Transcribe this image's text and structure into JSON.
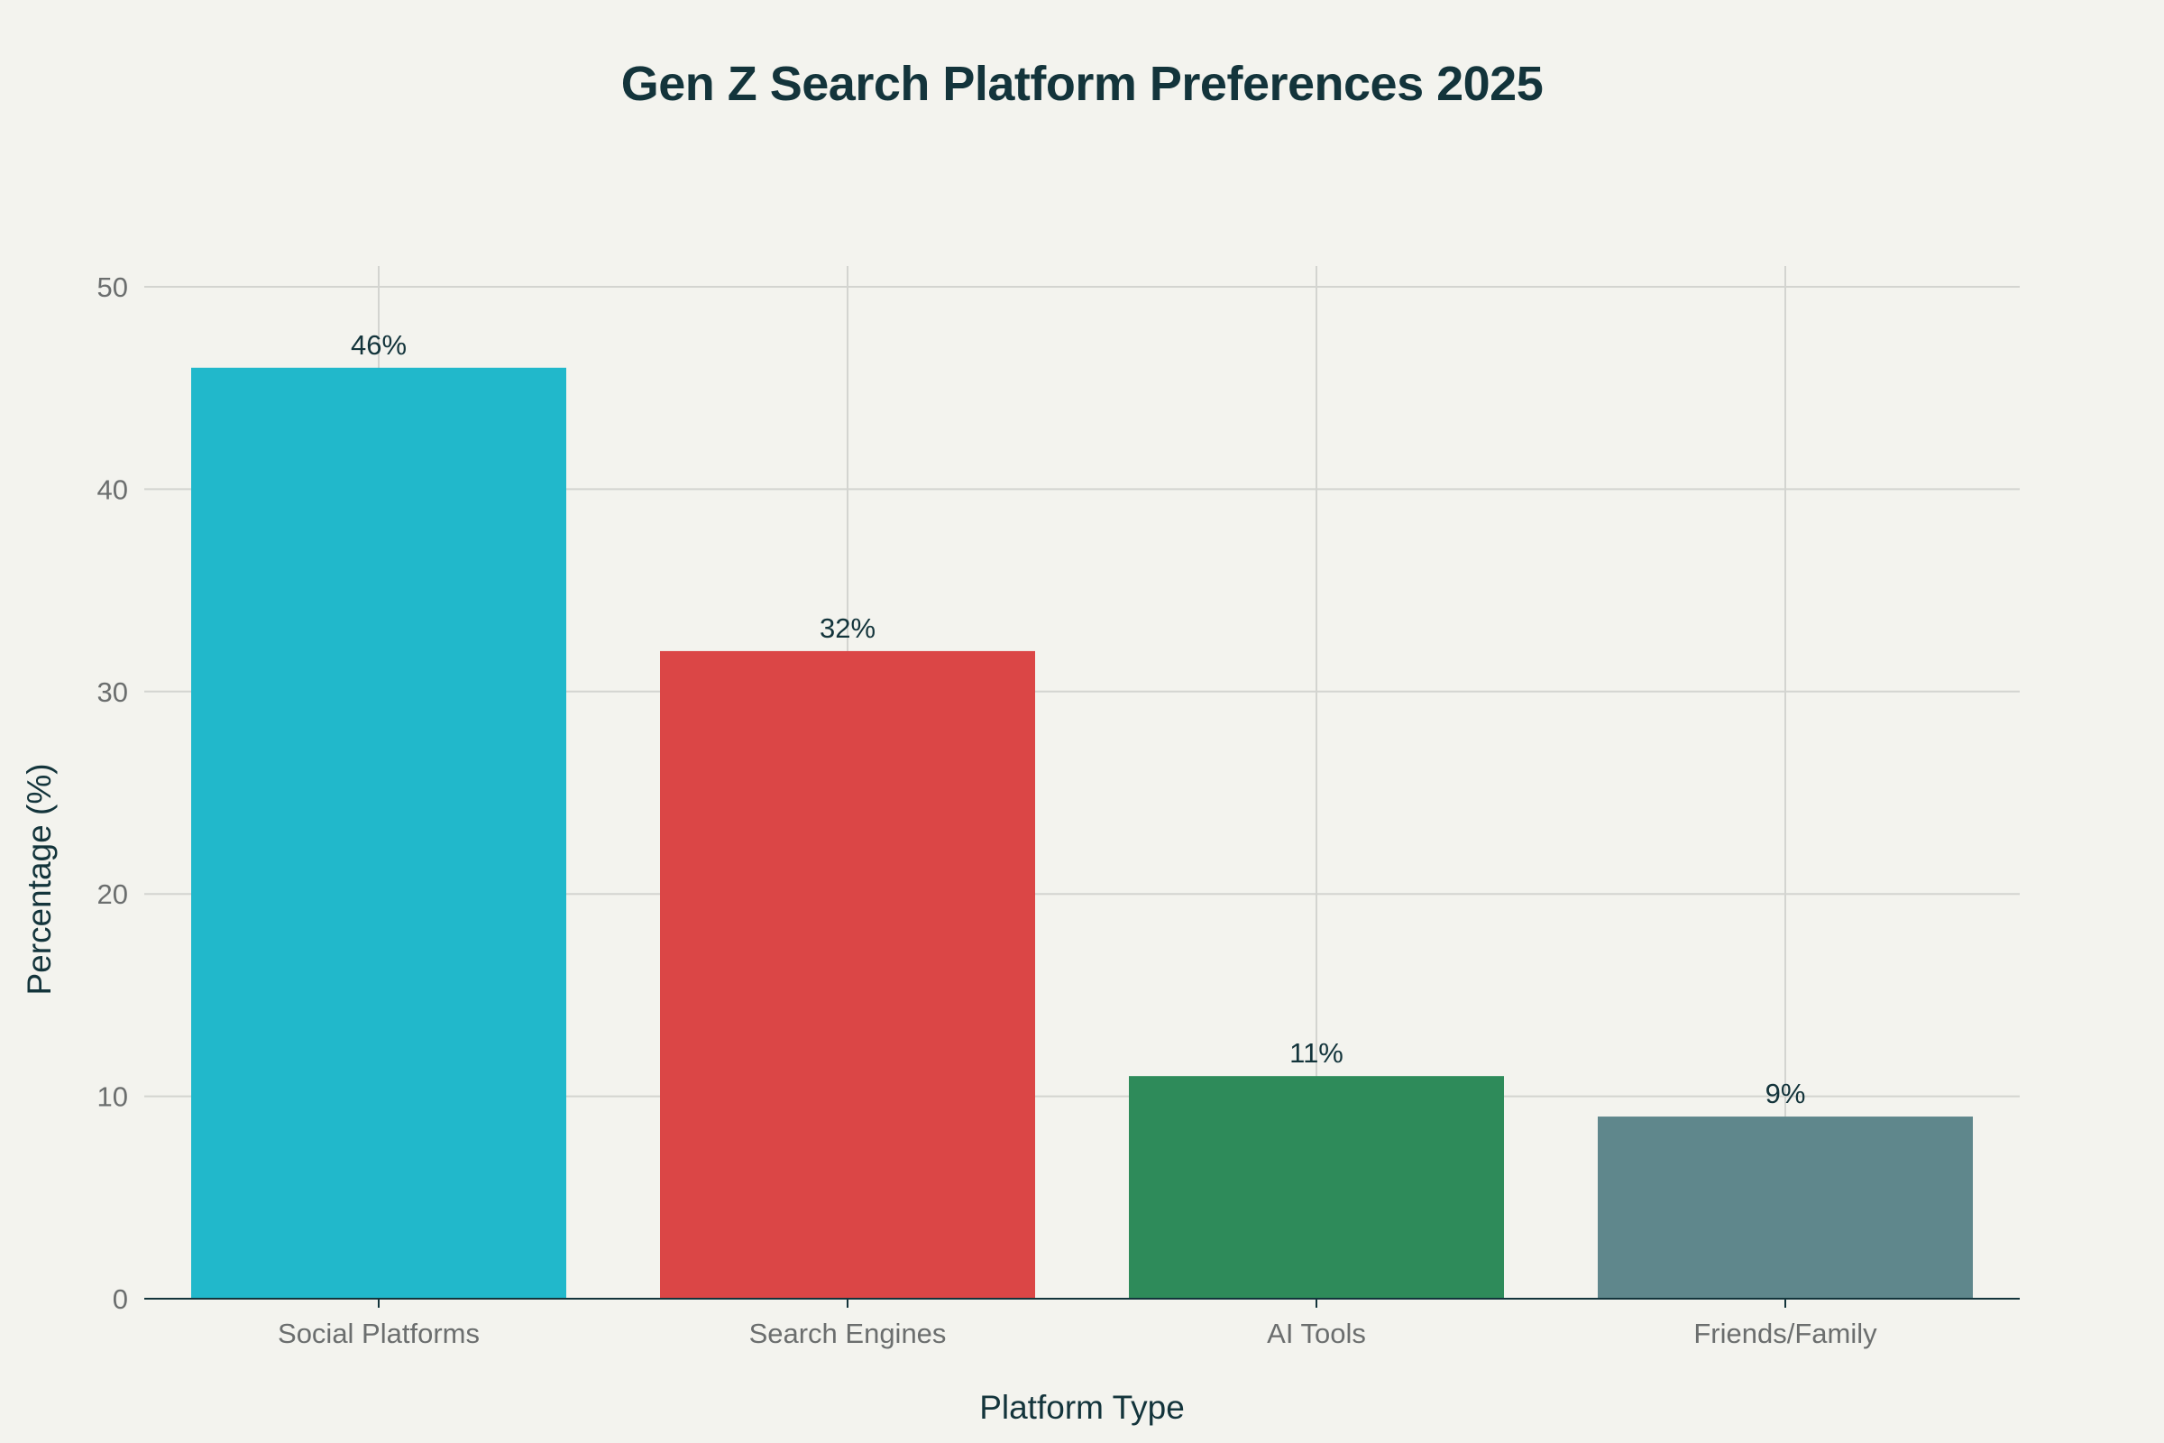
{
  "chart_data": {
    "type": "bar",
    "title": "Gen Z Search Platform Preferences 2025",
    "xlabel": "Platform Type",
    "ylabel": "Percentage (%)",
    "categories": [
      "Social Platforms",
      "Search Engines",
      "AI Tools",
      "Friends/Family"
    ],
    "values": [
      46,
      32,
      11,
      9
    ],
    "data_labels": [
      "46%",
      "32%",
      "11%",
      "9%"
    ],
    "colors": [
      "#21b8cb",
      "#db4646",
      "#2e8b5a",
      "#5f878c"
    ],
    "ylim": [
      0,
      50
    ],
    "yticks": [
      0,
      10,
      20,
      30,
      40,
      50
    ],
    "grid": true,
    "legend": "none"
  }
}
